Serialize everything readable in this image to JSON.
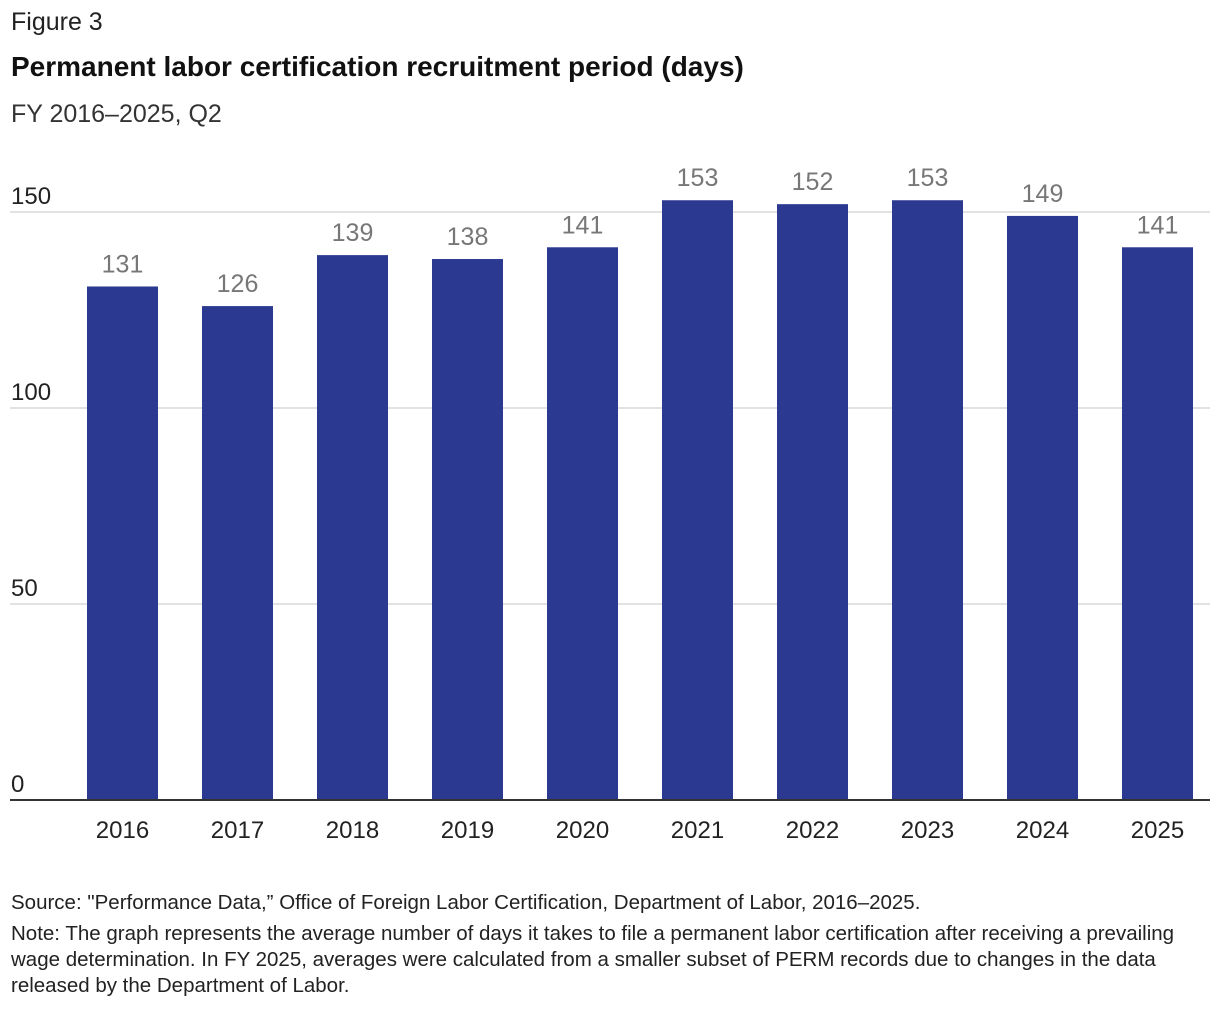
{
  "header": {
    "figure_label": "Figure 3",
    "title": "Permanent labor certification recruitment period (days)",
    "subtitle": "FY 2016–2025, Q2"
  },
  "footer": {
    "source": "Source: \"Performance Data,” Office of Foreign Labor Certification, Department of Labor, 2016–2025.",
    "note": "Note: The graph represents the average number of days it takes to file a permanent labor certification after receiving a prevailing wage determination. In FY 2025, averages were calculated from a smaller subset of PERM records due to changes in the data released by the Department of Labor."
  },
  "chart_data": {
    "type": "bar",
    "title": "Permanent labor certification recruitment period (days)",
    "subtitle": "FY 2016–2025, Q2",
    "categories": [
      "2016",
      "2017",
      "2018",
      "2019",
      "2020",
      "2021",
      "2022",
      "2023",
      "2024",
      "2025"
    ],
    "values": [
      131,
      126,
      139,
      138,
      141,
      153,
      152,
      153,
      149,
      141
    ],
    "ylim": [
      0,
      150
    ],
    "yticks": [
      0,
      50,
      100,
      150
    ],
    "xlabel": "",
    "ylabel": "",
    "grid": true,
    "legend": "none",
    "bar_color": "#2b3990",
    "label_color": "#777777",
    "grid_color": "#d9d9d9"
  }
}
